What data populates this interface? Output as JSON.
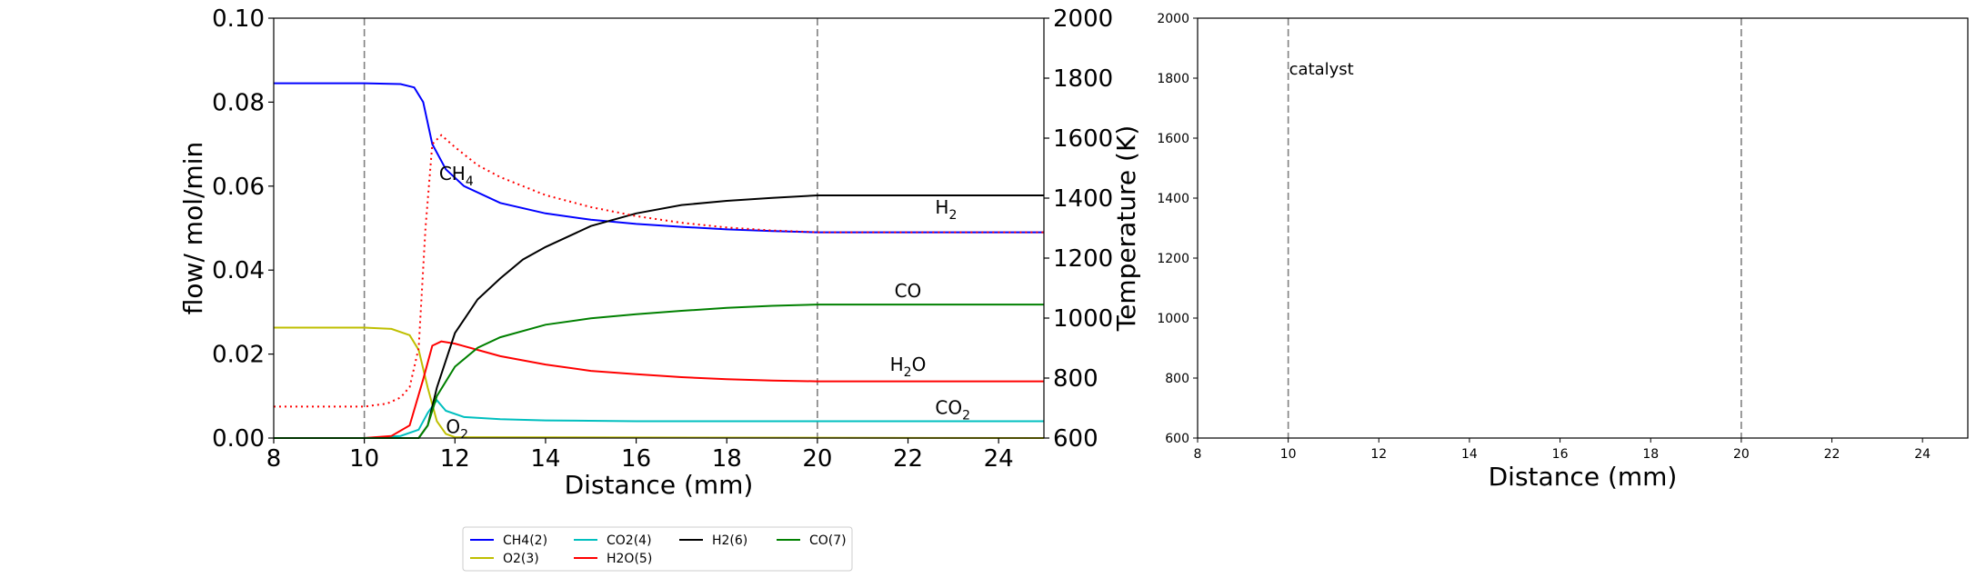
{
  "chart_data": [
    {
      "type": "line",
      "xlabel": "Distance (mm)",
      "ylabel": "flow/ mol/min",
      "y2label": "Temperature (K)",
      "xlim": [
        8,
        25
      ],
      "ylim": [
        0,
        0.1
      ],
      "y2lim": [
        600,
        2000
      ],
      "xticks": [
        "8",
        "10",
        "12",
        "14",
        "16",
        "18",
        "20",
        "22",
        "24"
      ],
      "yticks": [
        "0.00",
        "0.02",
        "0.04",
        "0.06",
        "0.08",
        "0.10"
      ],
      "y2ticks": [
        "600",
        "800",
        "1000",
        "1200",
        "1400",
        "1600",
        "1800",
        "2000"
      ],
      "vlines": [
        10,
        20
      ],
      "grid": false,
      "legend_position": "below",
      "series": [
        {
          "name": "CH4(2)",
          "color": "#0000ff",
          "x": [
            8,
            10,
            10.8,
            11.1,
            11.3,
            11.5,
            11.8,
            12.2,
            13,
            14,
            15,
            16,
            17,
            18,
            19,
            20,
            25
          ],
          "y": [
            0.0845,
            0.0845,
            0.0843,
            0.0835,
            0.08,
            0.07,
            0.064,
            0.06,
            0.056,
            0.0535,
            0.052,
            0.051,
            0.0503,
            0.0497,
            0.0493,
            0.049,
            0.049
          ]
        },
        {
          "name": "O2(3)",
          "color": "#bfbf00",
          "x": [
            8,
            10,
            10.6,
            11,
            11.2,
            11.4,
            11.6,
            11.8,
            12,
            25
          ],
          "y": [
            0.0263,
            0.0263,
            0.026,
            0.0245,
            0.021,
            0.012,
            0.004,
            0.001,
            0.0002,
            0
          ]
        },
        {
          "name": "CO2(4)",
          "color": "#00bfbf",
          "x": [
            8,
            10,
            10.8,
            11.2,
            11.4,
            11.6,
            11.8,
            12.2,
            13,
            14,
            16,
            18,
            20,
            25
          ],
          "y": [
            0,
            0,
            0.0005,
            0.002,
            0.006,
            0.009,
            0.0065,
            0.005,
            0.0045,
            0.0042,
            0.004,
            0.004,
            0.004,
            0.004
          ]
        },
        {
          "name": "H2O(5)",
          "color": "#ff0000",
          "x": [
            8,
            10,
            10.6,
            11,
            11.3,
            11.5,
            11.7,
            12,
            12.5,
            13,
            14,
            15,
            16,
            17,
            18,
            19,
            20,
            25
          ],
          "y": [
            0,
            0,
            0.0005,
            0.003,
            0.014,
            0.022,
            0.023,
            0.0225,
            0.021,
            0.0195,
            0.0175,
            0.016,
            0.0152,
            0.0145,
            0.014,
            0.0137,
            0.0135,
            0.0135
          ]
        },
        {
          "name": "H2(6)",
          "color": "#000000",
          "x": [
            8,
            11.2,
            11.4,
            11.6,
            12,
            12.5,
            13,
            13.5,
            14,
            15,
            16,
            17,
            18,
            19,
            20,
            25
          ],
          "y": [
            0,
            0,
            0.003,
            0.012,
            0.025,
            0.033,
            0.038,
            0.0425,
            0.0455,
            0.0505,
            0.0535,
            0.0555,
            0.0565,
            0.0572,
            0.0578,
            0.0578
          ]
        },
        {
          "name": "CO(7)",
          "color": "#008000",
          "x": [
            8,
            11.2,
            11.4,
            11.6,
            12,
            12.5,
            13,
            14,
            15,
            16,
            17,
            18,
            19,
            20,
            25
          ],
          "y": [
            0,
            0,
            0.003,
            0.01,
            0.017,
            0.0215,
            0.024,
            0.027,
            0.0285,
            0.0295,
            0.0303,
            0.031,
            0.0315,
            0.0318,
            0.0318
          ]
        }
      ],
      "temperature": {
        "color": "#ff0000",
        "x": [
          8,
          10,
          10.5,
          10.8,
          11,
          11.2,
          11.35,
          11.5,
          11.7,
          12,
          12.5,
          13,
          14,
          15,
          16,
          17,
          18,
          19,
          20,
          25
        ],
        "y": [
          705,
          705,
          715,
          735,
          770,
          900,
          1300,
          1580,
          1610,
          1570,
          1510,
          1470,
          1410,
          1370,
          1340,
          1318,
          1302,
          1292,
          1286,
          1286
        ]
      },
      "annotations": [
        {
          "text": "CH",
          "sub": "4",
          "x": 11.65,
          "y": 0.0615,
          "color": "#0000ff"
        },
        {
          "text": "H",
          "sub": "2",
          "x": 22.6,
          "y": 0.0535,
          "color": "#000000"
        },
        {
          "text": "CO",
          "sub": "",
          "x": 21.7,
          "y": 0.0335,
          "color": "#008000"
        },
        {
          "text": "H",
          "sub": "2",
          "tail": "O",
          "x": 21.6,
          "y": 0.016,
          "color": "#ff0000"
        },
        {
          "text": "CO",
          "sub": "2",
          "x": 22.6,
          "y": 0.0057,
          "color": "#00bfbf"
        },
        {
          "text": "O",
          "sub": "2",
          "x": 11.8,
          "y": 0.0012,
          "color": "#bfbf00"
        }
      ]
    },
    {
      "type": "line",
      "xlabel": "Distance (mm)",
      "xlim": [
        8,
        25
      ],
      "ylim": [
        600,
        2000
      ],
      "xticks": [
        "8",
        "10",
        "12",
        "14",
        "16",
        "18",
        "20",
        "22",
        "24"
      ],
      "yticks": [
        "600",
        "800",
        "1000",
        "1200",
        "1400",
        "1600",
        "1800",
        "2000"
      ],
      "vlines": [
        10,
        20
      ],
      "grid": false,
      "annotations": [
        {
          "text": "catalyst",
          "x": 10,
          "y": 1830
        }
      ]
    }
  ],
  "legend": {
    "entries": [
      {
        "label": "CH4(2)",
        "color": "#0000ff"
      },
      {
        "label": "CO2(4)",
        "color": "#00bfbf"
      },
      {
        "label": "H2(6)",
        "color": "#000000"
      },
      {
        "label": "CO(7)",
        "color": "#008000"
      },
      {
        "label": "O2(3)",
        "color": "#bfbf00"
      },
      {
        "label": "H2O(5)",
        "color": "#ff0000"
      }
    ]
  }
}
